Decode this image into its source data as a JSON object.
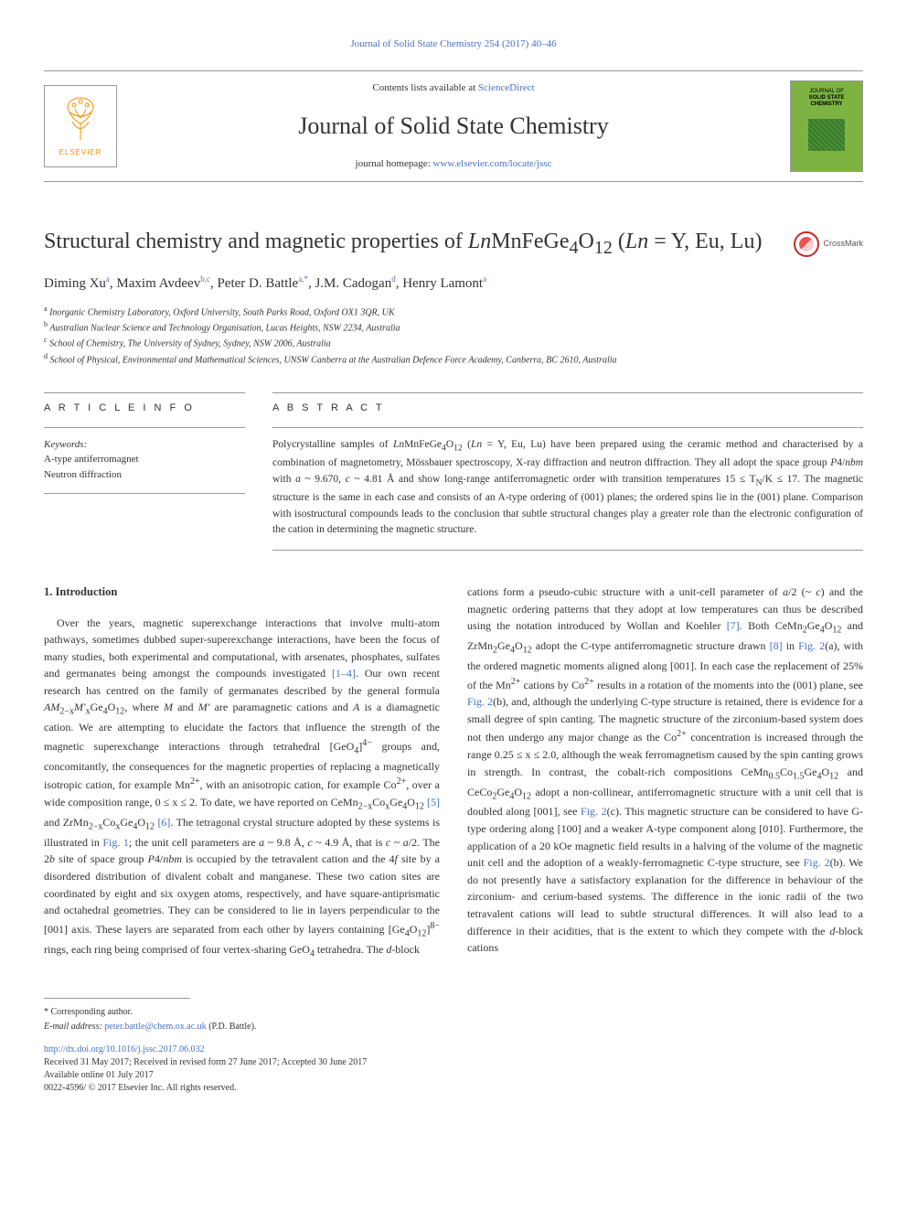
{
  "top_link": "Journal of Solid State Chemistry 254 (2017) 40–46",
  "header": {
    "contents_text": "Contents lists available at ",
    "sciencedirect": "ScienceDirect",
    "journal_name": "Journal of Solid State Chemistry",
    "homepage_label": "journal homepage: ",
    "homepage_url": "www.elsevier.com/locate/jssc",
    "elsevier": "ELSEVIER",
    "cover_line1": "JOURNAL OF",
    "cover_line2": "SOLID STATE",
    "cover_line3": "CHEMISTRY"
  },
  "article": {
    "title_html": "Structural chemistry and magnetic properties of <i>Ln</i>MnFeGe<sub>4</sub>O<sub>12</sub> (<i>Ln</i> = Y, Eu, Lu)",
    "crossmark": "CrossMark",
    "authors_html": "Diming Xu<sup>a</sup>, Maxim Avdeev<sup>b,c</sup>, Peter D. Battle<sup>a,*</sup>, J.M. Cadogan<sup>d</sup>, Henry Lamont<sup>a</sup>",
    "affiliations": [
      {
        "sup": "a",
        "text": "Inorganic Chemistry Laboratory, Oxford University, South Parks Road, Oxford OX1 3QR, UK"
      },
      {
        "sup": "b",
        "text": "Australian Nuclear Science and Technology Organisation, Lucas Heights, NSW 2234, Australia"
      },
      {
        "sup": "c",
        "text": "School of Chemistry, The University of Sydney, Sydney, NSW 2006, Australia"
      },
      {
        "sup": "d",
        "text": "School of Physical, Environmental and Mathematical Sciences, UNSW Canberra at the Australian Defence Force Academy, Canberra, BC 2610, Australia"
      }
    ]
  },
  "info": {
    "heading": "A R T I C L E  I N F O",
    "keywords_label": "Keywords:",
    "keywords": [
      "A-type antiferromagnet",
      "Neutron diffraction"
    ]
  },
  "abstract": {
    "heading": "A B S T R A C T",
    "text_html": "Polycrystalline samples of <i>Ln</i>MnFeGe<sub>4</sub>O<sub>12</sub> (<i>Ln</i> = Y, Eu, Lu) have been prepared using the ceramic method and characterised by a combination of magnetometry, Mössbauer spectroscopy, X-ray diffraction and neutron diffraction. They all adopt the space group <i>P</i>4/<i>nbm</i> with <i>a</i> ~ 9.670, <i>c</i> ~ 4.81 Å and show long-range antiferromagnetic order with transition temperatures 15 ≤ T<sub>N</sub>/K ≤ 17. The magnetic structure is the same in each case and consists of an A-type ordering of (001) planes; the ordered spins lie in the (001) plane. Comparison with isostructural compounds leads to the conclusion that subtle structural changes play a greater role than the electronic configuration of the cation in determining the magnetic structure."
  },
  "body": {
    "intro_heading": "1. Introduction",
    "col1_html": "Over the years, magnetic superexchange interactions that involve multi-atom pathways, sometimes dubbed super-superexchange interactions, have been the focus of many studies, both experimental and computational, with arsenates, phosphates, sulfates and germanates being amongst the compounds investigated <span class='ref-link'>[1–4]</span>. Our own recent research has centred on the family of germanates described by the general formula <i>AM</i><sub>2−x</sub><i>M′</i><sub>x</sub>Ge<sub>4</sub>O<sub>12</sub>, where <i>M</i> and <i>M′</i> are paramagnetic cations and <i>A</i> is a diamagnetic cation. We are attempting to elucidate the factors that influence the strength of the magnetic superexchange interactions through tetrahedral [GeO<sub>4</sub>]<sup>4−</sup> groups and, concomitantly, the consequences for the magnetic properties of replacing a magnetically isotropic cation, for example Mn<sup>2+</sup>, with an anisotropic cation, for example Co<sup>2+</sup>, over a wide composition range, 0 ≤ x ≤ 2. To date, we have reported on CeMn<sub>2−x</sub>Co<sub>x</sub>Ge<sub>4</sub>O<sub>12</sub> <span class='ref-link'>[5]</span> and ZrMn<sub>2−x</sub>Co<sub>x</sub>Ge<sub>4</sub>O<sub>12</sub> <span class='ref-link'>[6]</span>. The tetragonal crystal structure adopted by these systems is illustrated in <span class='ref-link'>Fig. 1</span>; the unit cell parameters are <i>a</i> ~ 9.8 Å, <i>c</i> ~ 4.9 Å, that is <i>c</i> ~ <i>a</i>/2. The 2<i>b</i> site of space group <i>P</i>4/<i>nbm</i> is occupied by the tetravalent cation and the 4<i>f</i> site by a disordered distribution of divalent cobalt and manganese. These two cation sites are coordinated by eight and six oxygen atoms, respectively, and have square-antiprismatic and octahedral geometries. They can be considered to lie in layers perpendicular to the [001] axis. These layers are separated from each other by layers containing [Ge<sub>4</sub>O<sub>12</sub>]<sup>8−</sup> rings, each ring being comprised of four vertex-sharing GeO<sub>4</sub> tetrahedra. The <i>d</i>-block",
    "col2_html": "cations form a pseudo-cubic structure with a unit-cell parameter of <i>a</i>/2 (~ <i>c</i>) and the magnetic ordering patterns that they adopt at low temperatures can thus be described using the notation introduced by Wollan and Koehler <span class='ref-link'>[7]</span>. Both CeMn<sub>2</sub>Ge<sub>4</sub>O<sub>12</sub> and ZrMn<sub>2</sub>Ge<sub>4</sub>O<sub>12</sub> adopt the C-type antiferromagnetic structure drawn <span class='ref-link'>[8]</span> in <span class='ref-link'>Fig. 2</span>(a), with the ordered magnetic moments aligned along [001]. In each case the replacement of 25% of the Mn<sup>2+</sup> cations by Co<sup>2+</sup> results in a rotation of the moments into the (001) plane, see <span class='ref-link'>Fig. 2</span>(b), and, although the underlying C-type structure is retained, there is evidence for a small degree of spin canting. The magnetic structure of the zirconium-based system does not then undergo any major change as the Co<sup>2+</sup> concentration is increased through the range 0.25 ≤ x ≤ 2.0, although the weak ferromagnetism caused by the spin canting grows in strength. In contrast, the cobalt-rich compositions CeMn<sub>0.5</sub>Co<sub>1.5</sub>Ge<sub>4</sub>O<sub>12</sub> and CeCo<sub>2</sub>Ge<sub>4</sub>O<sub>12</sub> adopt a non-collinear, antiferromagnetic structure with a unit cell that is doubled along [001], see <span class='ref-link'>Fig. 2</span>(c). This magnetic structure can be considered to have G-type ordering along [100] and a weaker A-type component along [010]. Furthermore, the application of a 20 kOe magnetic field results in a halving of the volume of the magnetic unit cell and the adoption of a weakly-ferromagnetic C-type structure, see <span class='ref-link'>Fig. 2</span>(b). We do not presently have a satisfactory explanation for the difference in behaviour of the zirconium- and cerium-based systems. The difference in the ionic radii of the two tetravalent cations will lead to subtle structural differences. It will also lead to a difference in their acidities, that is the extent to which they compete with the <i>d</i>-block cations"
  },
  "footer": {
    "corresponding": "* Corresponding author.",
    "email_label": "E-mail address: ",
    "email": "peter.battle@chem.ox.ac.uk",
    "email_suffix": " (P.D. Battle).",
    "doi": "http://dx.doi.org/10.1016/j.jssc.2017.06.032",
    "received": "Received 31 May 2017; Received in revised form 27 June 2017; Accepted 30 June 2017",
    "available": "Available online 01 July 2017",
    "copyright": "0022-4596/ © 2017 Elsevier Inc. All rights reserved."
  }
}
